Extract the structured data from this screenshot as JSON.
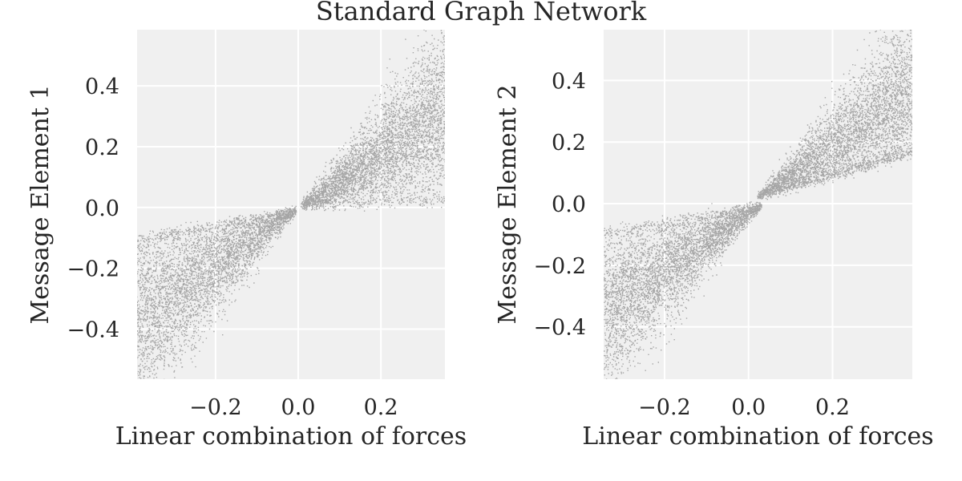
{
  "figure": {
    "suptitle": "Standard Graph Network"
  },
  "style": {
    "panel_background": "#f0f0f0",
    "grid_color": "#ffffff",
    "point_color": "#1a1a1a",
    "text_color": "#262626"
  },
  "chart_data": [
    {
      "type": "scatter",
      "title": "",
      "xlabel": "Linear combination of forces",
      "ylabel": "Message Element 1",
      "xlim": [
        -0.39,
        0.355
      ],
      "ylim": [
        -0.565,
        0.585
      ],
      "xticks": [
        -0.2,
        0.0,
        0.2
      ],
      "xtick_labels": [
        "−0.2",
        "0.0",
        "0.2"
      ],
      "yticks": [
        0.4,
        0.2,
        0.0,
        -0.2,
        -0.4
      ],
      "ytick_labels": [
        "0.4",
        "0.2",
        "0.0",
        "−0.2",
        "−0.4"
      ],
      "grid": true,
      "series": [
        {
          "values_description": "dense cloud of points; negative branch follows y ≈ 0.8x near origin and fans out to y ≈ -0.55 at x = -0.39; positive branch follows y ≈ 0.8x near origin and fans out to y ≈ 0.58 at x = 0.35",
          "points_sample": [
            {
              "x": -0.35,
              "y": -0.12
            },
            {
              "x": -0.3,
              "y": -0.25
            },
            {
              "x": -0.25,
              "y": -0.4
            },
            {
              "x": -0.2,
              "y": -0.11
            },
            {
              "x": -0.15,
              "y": -0.2
            },
            {
              "x": -0.1,
              "y": -0.09
            },
            {
              "x": -0.05,
              "y": -0.06
            },
            {
              "x": 0.0,
              "y": 0.0
            },
            {
              "x": 0.05,
              "y": 0.04
            },
            {
              "x": 0.1,
              "y": 0.1
            },
            {
              "x": 0.15,
              "y": 0.3
            },
            {
              "x": 0.2,
              "y": 0.12
            },
            {
              "x": 0.25,
              "y": 0.45
            },
            {
              "x": 0.3,
              "y": 0.2
            },
            {
              "x": 0.34,
              "y": 0.05
            }
          ]
        }
      ]
    },
    {
      "type": "scatter",
      "title": "",
      "xlabel": "Linear combination of forces",
      "ylabel": "Message Element 2",
      "xlim": [
        -0.345,
        0.39
      ],
      "ylim": [
        -0.57,
        0.565
      ],
      "xticks": [
        -0.2,
        0.0,
        0.2
      ],
      "xtick_labels": [
        "−0.2",
        "0.0",
        "0.2"
      ],
      "yticks": [
        0.4,
        0.2,
        0.0,
        -0.2,
        -0.4
      ],
      "ytick_labels": [
        "0.4",
        "0.2",
        "0.0",
        "−0.2",
        "−0.4"
      ],
      "grid": true,
      "series": [
        {
          "values_description": "dense cloud of points; negative branch fans from origin down to y ≈ -0.57 across x in [-0.345, 0.02]; positive branch fans from origin up to y ≈ 0.56 across x in [0.03, 0.39]",
          "points_sample": [
            {
              "x": -0.33,
              "y": -0.05
            },
            {
              "x": -0.3,
              "y": -0.3
            },
            {
              "x": -0.25,
              "y": -0.5
            },
            {
              "x": -0.2,
              "y": -0.15
            },
            {
              "x": -0.1,
              "y": -0.35
            },
            {
              "x": -0.05,
              "y": -0.04
            },
            {
              "x": 0.0,
              "y": -0.01
            },
            {
              "x": 0.05,
              "y": 0.03
            },
            {
              "x": 0.1,
              "y": 0.1
            },
            {
              "x": 0.15,
              "y": 0.3
            },
            {
              "x": 0.2,
              "y": 0.12
            },
            {
              "x": 0.25,
              "y": 0.45
            },
            {
              "x": 0.3,
              "y": 0.15
            },
            {
              "x": 0.38,
              "y": 0.3
            }
          ]
        }
      ]
    }
  ]
}
